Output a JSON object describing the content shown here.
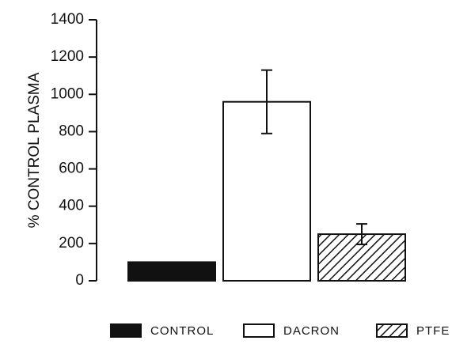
{
  "chart_data": {
    "type": "bar",
    "y_label": "% CONTROL PLASMA",
    "categories": [
      null
    ],
    "series": [
      {
        "name": "CONTROL",
        "color": "#111111",
        "hatch": false,
        "values": [
          100
        ],
        "errors": [
          null
        ]
      },
      {
        "name": "DACRON",
        "color": "#ffffff",
        "hatch": false,
        "values": [
          960
        ],
        "errors": [
          170
        ]
      },
      {
        "name": "PTFE",
        "color": "#ffffff",
        "hatch": true,
        "values": [
          250
        ],
        "errors": [
          55
        ]
      }
    ],
    "ylim": [
      0,
      1400
    ],
    "yticks": [
      0,
      200,
      400,
      600,
      800,
      1000,
      1200,
      1400
    ],
    "legend": "bottom"
  }
}
